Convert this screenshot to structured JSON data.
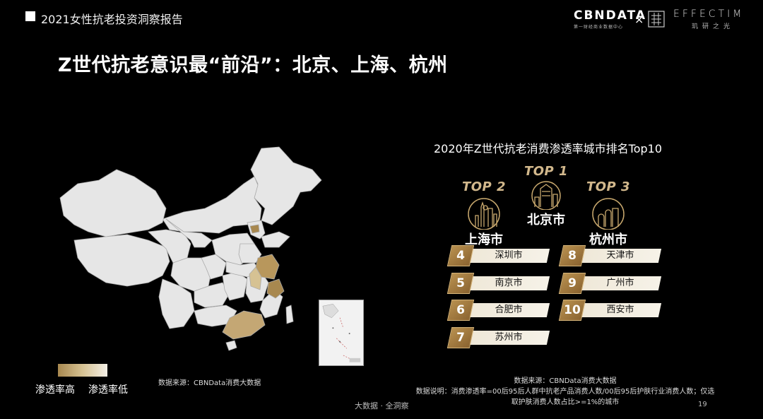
{
  "header": {
    "report_title": "2021女性抗老投资洞察报告",
    "logo_cbn_name": "CBNDATA",
    "logo_cbn_sub": "第一财经商业数据中心",
    "logo_x": "×",
    "logo_eff_name": "EFFECTIM",
    "logo_eff_sub": "玑研之光"
  },
  "main_title": "Z世代抗老意识最“前沿”：北京、上海、杭州",
  "map": {
    "legend_high": "渗透率高",
    "legend_low": "渗透率低",
    "source": "数据来源：CBNData消费大数据",
    "colors": {
      "high": "#a8884f",
      "mid": "#d6c293",
      "low": "#f3efe6",
      "base": "#e6e6e6"
    }
  },
  "ranking": {
    "title": "2020年Z世代抗老消费渗透率城市排名Top10",
    "top3": [
      {
        "label": "TOP 1",
        "city": "北京市"
      },
      {
        "label": "TOP 2",
        "city": "上海市"
      },
      {
        "label": "TOP 3",
        "city": "杭州市"
      }
    ],
    "rows": [
      {
        "rank": "4",
        "city": "深圳市"
      },
      {
        "rank": "5",
        "city": "南京市"
      },
      {
        "rank": "6",
        "city": "合肥市"
      },
      {
        "rank": "7",
        "city": "苏州市"
      },
      {
        "rank": "8",
        "city": "天津市"
      },
      {
        "rank": "9",
        "city": "广州市"
      },
      {
        "rank": "10",
        "city": "西安市"
      }
    ]
  },
  "notes": {
    "line1": "数据来源：CBNData消费大数据",
    "line2": "数据说明：消费渗透率=00后95后人群中抗老产品消费人数/00后95后护肤行业消费人数；仅选",
    "line3": "取护肤消费人数占比>=1%的城市"
  },
  "footer": {
    "center": "大数据 · 全洞察",
    "page": "19"
  }
}
